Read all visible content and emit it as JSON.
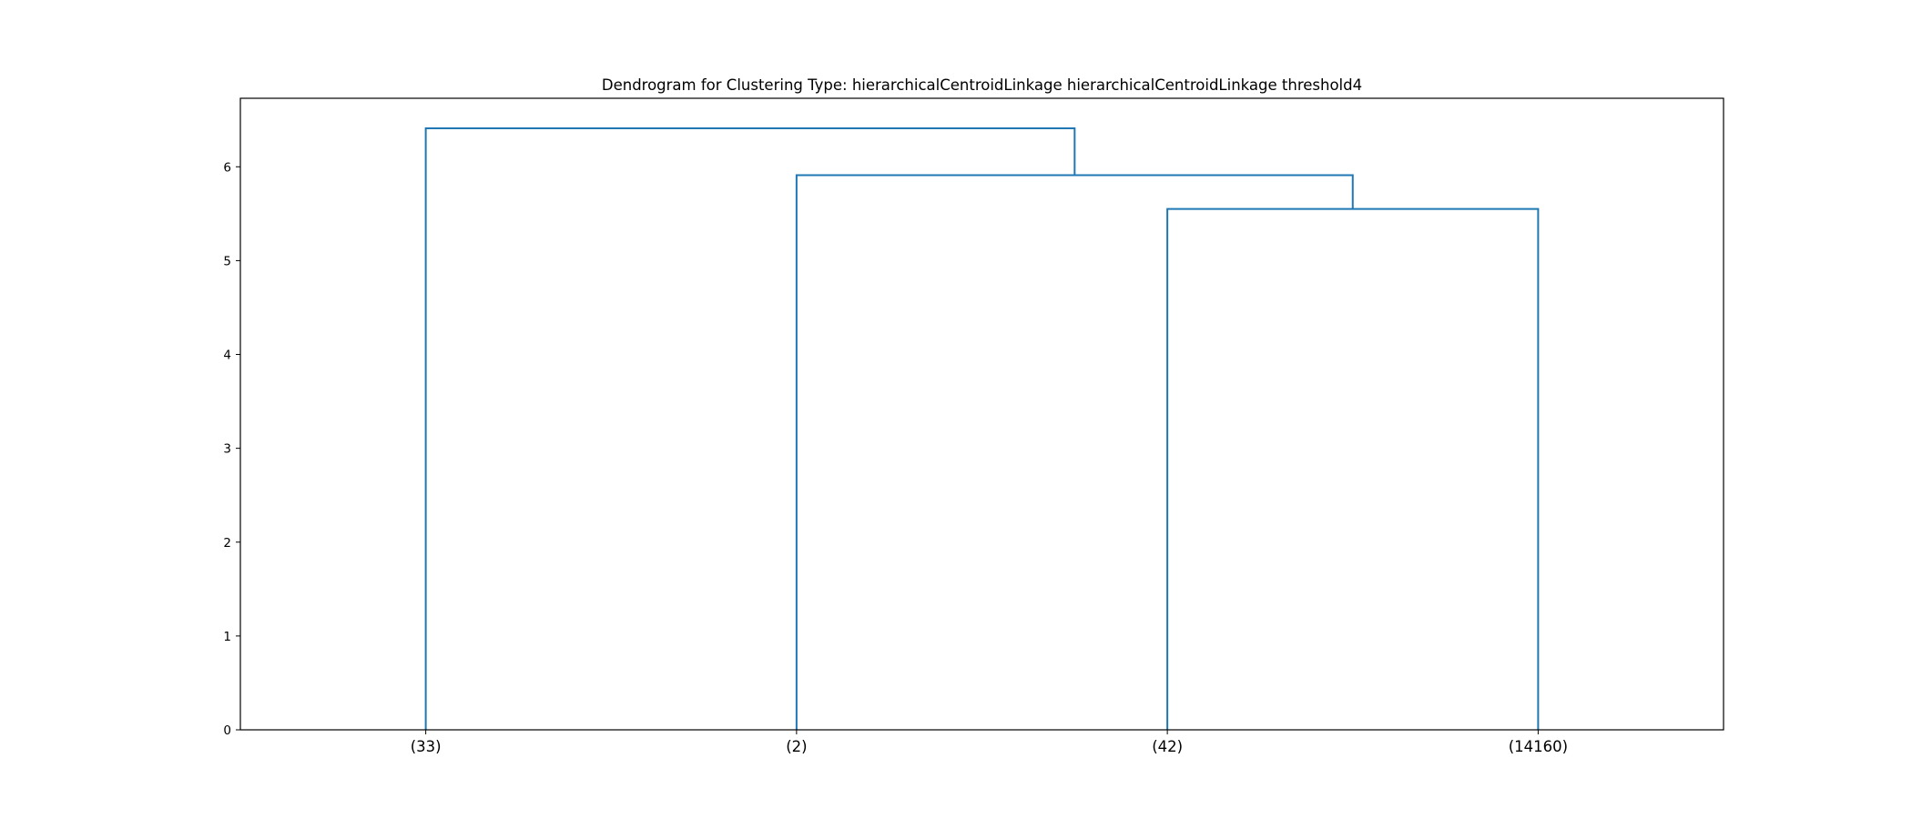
{
  "chart_data": {
    "type": "dendrogram",
    "title": "Dendrogram for Clustering Type: hierarchicalCentroidLinkage hierarchicalCentroidLinkage threshold4",
    "xlabel": "",
    "ylabel": "",
    "leaves": [
      "(33)",
      "(2)",
      "(42)",
      "(14160)"
    ],
    "yticks": [
      0,
      1,
      2,
      3,
      4,
      5,
      6
    ],
    "ylim": [
      0,
      6.73
    ],
    "merges": [
      {
        "left": "(42)",
        "right": "(14160)",
        "height": 5.55
      },
      {
        "left": "(2)",
        "right": "cluster-1",
        "height": 5.91
      },
      {
        "left": "(33)",
        "right": "cluster-2",
        "height": 6.41
      }
    ],
    "grid": false,
    "line_color": "#1f77b4"
  }
}
